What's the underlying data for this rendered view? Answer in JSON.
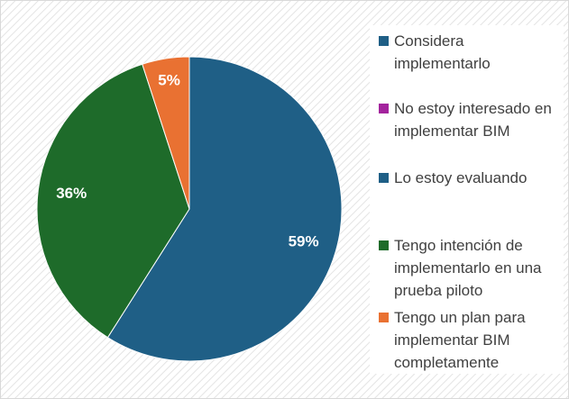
{
  "chart_data": {
    "type": "pie",
    "categories": [
      "Considera implementarlo",
      "No estoy interesado en implementar BIM",
      "Lo estoy evaluando",
      "Tengo intención de implementarlo en una prueba piloto",
      "Tengo un plan para implementar BIM completamente"
    ],
    "values": [
      59,
      0,
      0,
      36,
      5
    ],
    "value_labels": [
      "59%",
      null,
      null,
      "36%",
      "5%"
    ],
    "colors": [
      "#1f5f86",
      "#a3239d",
      "#1f5f86",
      "#1e6b2a",
      "#e97132"
    ],
    "legend": "right"
  }
}
